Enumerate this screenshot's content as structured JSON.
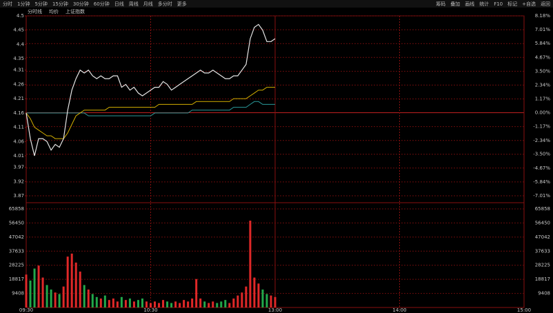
{
  "toolbar": {
    "left": [
      "分时",
      "1分钟",
      "5分钟",
      "15分钟",
      "30分钟",
      "60分钟",
      "日线",
      "周线",
      "月线",
      "多分时",
      "更多"
    ],
    "right": [
      "筹码",
      "叠加",
      "画线",
      "统计",
      "F10",
      "标记",
      "+自选",
      "返回"
    ]
  },
  "chart_data": [
    {
      "type": "line",
      "x": [
        "09:30",
        "09:32",
        "09:34",
        "09:36",
        "09:38",
        "09:40",
        "09:42",
        "09:44",
        "09:46",
        "09:48",
        "09:50",
        "09:52",
        "09:54",
        "09:56",
        "09:58",
        "10:00",
        "10:02",
        "10:04",
        "10:06",
        "10:08",
        "10:10",
        "10:12",
        "10:14",
        "10:16",
        "10:18",
        "10:20",
        "10:22",
        "10:24",
        "10:26",
        "10:28",
        "10:30",
        "10:32",
        "10:34",
        "10:36",
        "10:38",
        "10:40",
        "10:42",
        "10:44",
        "10:46",
        "10:48",
        "10:50",
        "10:52",
        "10:54",
        "10:56",
        "10:58",
        "11:00",
        "11:02",
        "11:04",
        "11:06",
        "11:08",
        "11:10",
        "11:12",
        "11:14",
        "11:16",
        "11:18",
        "11:20",
        "11:22",
        "11:24",
        "11:26",
        "11:28",
        "11:30"
      ],
      "series": [
        {
          "name": "分时线",
          "color": "#e6e6e6",
          "values": [
            4.16,
            4.07,
            4.01,
            4.07,
            4.07,
            4.06,
            4.03,
            4.05,
            4.04,
            4.07,
            4.17,
            4.24,
            4.28,
            4.31,
            4.3,
            4.31,
            4.29,
            4.28,
            4.29,
            4.28,
            4.28,
            4.29,
            4.29,
            4.25,
            4.26,
            4.24,
            4.25,
            4.23,
            4.22,
            4.23,
            4.24,
            4.25,
            4.25,
            4.27,
            4.26,
            4.24,
            4.25,
            4.26,
            4.27,
            4.28,
            4.29,
            4.3,
            4.31,
            4.3,
            4.3,
            4.31,
            4.3,
            4.29,
            4.28,
            4.28,
            4.29,
            4.29,
            4.31,
            4.33,
            4.42,
            4.46,
            4.47,
            4.45,
            4.41,
            4.41,
            4.42
          ]
        },
        {
          "name": "均价",
          "color": "#d4b000",
          "values": [
            4.16,
            4.14,
            4.11,
            4.1,
            4.09,
            4.08,
            4.08,
            4.07,
            4.07,
            4.07,
            4.09,
            4.12,
            4.15,
            4.16,
            4.17,
            4.17,
            4.17,
            4.17,
            4.17,
            4.17,
            4.18,
            4.18,
            4.18,
            4.18,
            4.18,
            4.18,
            4.18,
            4.18,
            4.18,
            4.18,
            4.18,
            4.18,
            4.19,
            4.19,
            4.19,
            4.19,
            4.19,
            4.19,
            4.19,
            4.19,
            4.19,
            4.2,
            4.2,
            4.2,
            4.2,
            4.2,
            4.2,
            4.2,
            4.2,
            4.2,
            4.21,
            4.21,
            4.21,
            4.21,
            4.22,
            4.23,
            4.24,
            4.24,
            4.25,
            4.25,
            4.25
          ]
        },
        {
          "name": "上证指数",
          "color": "#2a9a9a",
          "values": [
            4.16,
            4.16,
            4.16,
            4.16,
            4.16,
            4.16,
            4.16,
            4.16,
            4.16,
            4.16,
            4.16,
            4.16,
            4.16,
            4.16,
            4.16,
            4.15,
            4.15,
            4.15,
            4.15,
            4.15,
            4.15,
            4.15,
            4.15,
            4.15,
            4.15,
            4.15,
            4.15,
            4.15,
            4.15,
            4.15,
            4.15,
            4.16,
            4.16,
            4.16,
            4.16,
            4.16,
            4.16,
            4.16,
            4.16,
            4.16,
            4.17,
            4.17,
            4.17,
            4.17,
            4.17,
            4.17,
            4.17,
            4.17,
            4.17,
            4.17,
            4.18,
            4.18,
            4.18,
            4.18,
            4.19,
            4.2,
            4.2,
            4.19,
            4.19,
            4.19,
            4.19
          ]
        }
      ],
      "ylim": [
        3.87,
        4.5
      ],
      "yticks": [
        4.5,
        4.45,
        4.4,
        4.35,
        4.31,
        4.26,
        4.21,
        4.16,
        4.11,
        4.06,
        4.01,
        3.97,
        3.92,
        3.87
      ],
      "y2lim": [
        -7.01,
        8.18
      ],
      "y2ticks": [
        {
          "value": 8.18,
          "label": "8.18%"
        },
        {
          "value": 7.01,
          "label": "7.01%"
        },
        {
          "value": 5.84,
          "label": "5.84%"
        },
        {
          "value": 4.67,
          "label": "4.67%"
        },
        {
          "value": 3.5,
          "label": "3.50%"
        },
        {
          "value": 2.34,
          "label": "2.34%"
        },
        {
          "value": 1.17,
          "label": "1.17%"
        },
        {
          "value": 0,
          "label": "0.00%"
        },
        {
          "value": -1.17,
          "label": "-1.17%"
        },
        {
          "value": -2.34,
          "label": "-2.34%"
        },
        {
          "value": -3.5,
          "label": "-3.50%"
        },
        {
          "value": -4.67,
          "label": "-4.67%"
        },
        {
          "value": -5.84,
          "label": "-5.84%"
        },
        {
          "value": -7.01,
          "label": "-7.01%"
        }
      ],
      "xticks": [
        "09:30",
        "10:30",
        "13:00",
        "14:00",
        "15:00"
      ],
      "grid": true
    },
    {
      "type": "bar",
      "x": [
        "09:30",
        "09:32",
        "09:34",
        "09:36",
        "09:38",
        "09:40",
        "09:42",
        "09:44",
        "09:46",
        "09:48",
        "09:50",
        "09:52",
        "09:54",
        "09:56",
        "09:58",
        "10:00",
        "10:02",
        "10:04",
        "10:06",
        "10:08",
        "10:10",
        "10:12",
        "10:14",
        "10:16",
        "10:18",
        "10:20",
        "10:22",
        "10:24",
        "10:26",
        "10:28",
        "10:30",
        "10:32",
        "10:34",
        "10:36",
        "10:38",
        "10:40",
        "10:42",
        "10:44",
        "10:46",
        "10:48",
        "10:50",
        "10:52",
        "10:54",
        "10:56",
        "10:58",
        "11:00",
        "11:02",
        "11:04",
        "11:06",
        "11:08",
        "11:10",
        "11:12",
        "11:14",
        "11:16",
        "11:18",
        "11:20",
        "11:22",
        "11:24",
        "11:26",
        "11:28",
        "11:30"
      ],
      "series": [
        {
          "name": "成交量",
          "color": "#e02828",
          "values": [
            22000,
            18000,
            26000,
            28000,
            20000,
            15000,
            12000,
            10000,
            9000,
            14000,
            34000,
            36000,
            30000,
            24000,
            15000,
            12000,
            9000,
            7000,
            6000,
            8000,
            5000,
            6000,
            4000,
            7000,
            5000,
            6000,
            4000,
            5000,
            6000,
            4000,
            3000,
            4000,
            3000,
            5000,
            4000,
            3000,
            4000,
            3000,
            5000,
            4000,
            6000,
            19000,
            6000,
            4000,
            3000,
            4000,
            3000,
            4000,
            5000,
            3000,
            6000,
            8000,
            10000,
            14000,
            58000,
            20000,
            16000,
            12000,
            9000,
            8000,
            7000
          ]
        }
      ],
      "up_color": "#e02828",
      "down_color": "#22a84a",
      "ylim": [
        0,
        65858
      ],
      "yticks": [
        65858,
        56450,
        47042,
        37633,
        28225,
        18817,
        9408
      ],
      "grid": true
    }
  ]
}
